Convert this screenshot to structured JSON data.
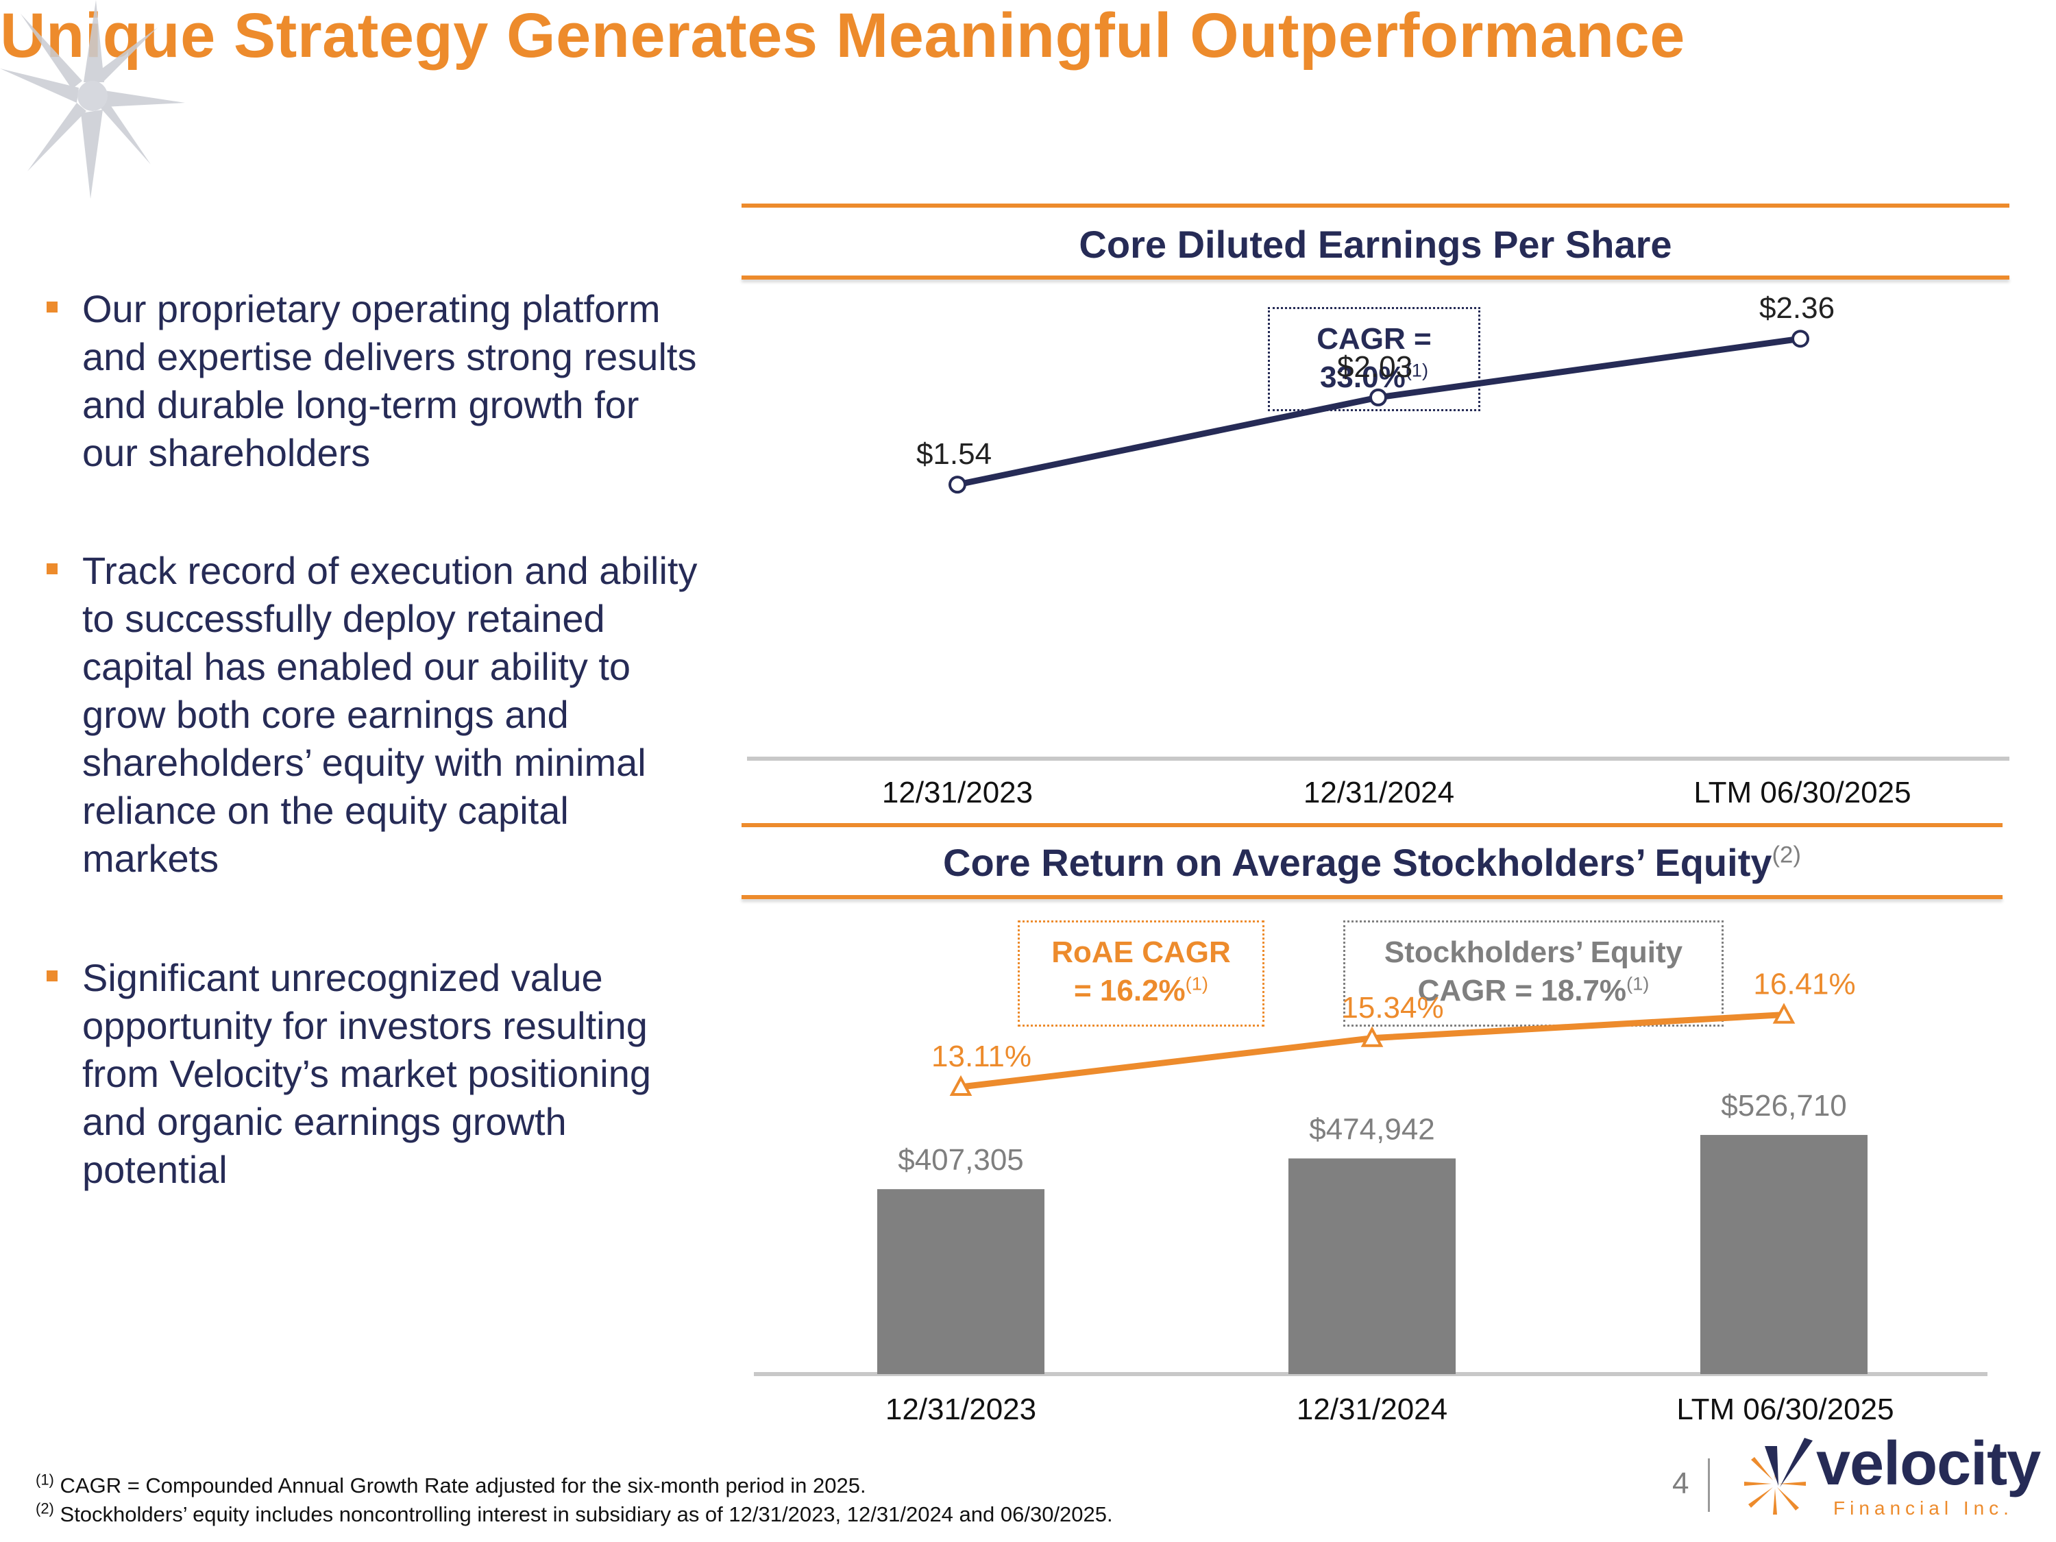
{
  "title": "Unique Strategy Generates Meaningful Outperformance",
  "bullets": [
    "Our proprietary operating platform and expertise delivers strong results and durable long-term growth for our shareholders",
    "Track record of execution and ability to successfully deploy retained capital has enabled our ability to grow both core earnings and shareholders’ equity with minimal reliance on the equity capital markets",
    "Significant unrecognized value opportunity for investors resulting from Velocity’s market positioning and organic earnings growth potential"
  ],
  "colors": {
    "accent": "#ED8B2C",
    "navy": "#262B56",
    "gray": "#808080",
    "gray_text": "#7F7F7F"
  },
  "chart_data": [
    {
      "type": "line",
      "title": "Core Diluted Earnings Per Share",
      "categories": [
        "12/31/2023",
        "12/31/2024",
        "LTM 06/30/2025"
      ],
      "values": [
        1.54,
        2.03,
        2.36
      ],
      "data_labels": [
        "$1.54",
        "$2.03",
        "$2.36"
      ],
      "ylim": [
        0,
        2.8
      ],
      "annotation": {
        "line1": "CAGR =",
        "line2": "33.0%",
        "footnote_ref": "(1)"
      }
    },
    {
      "type": "bar",
      "title": "Core Return on Average Stockholders’ Equity",
      "title_footnote_ref": "(2)",
      "categories": [
        "12/31/2023",
        "12/31/2024",
        "LTM 06/30/2025"
      ],
      "series": [
        {
          "name": "Stockholders’ Equity",
          "type": "bar",
          "values": [
            407305,
            474942,
            526710
          ],
          "data_labels": [
            "$407,305",
            "$474,942",
            "$526,710"
          ]
        },
        {
          "name": "Core RoAE",
          "type": "line",
          "values": [
            13.11,
            15.34,
            16.41
          ],
          "data_labels": [
            "13.11%",
            "15.34%",
            "16.41%"
          ]
        }
      ],
      "annotations": {
        "roae_cagr": {
          "line1": "RoAE CAGR",
          "line2": "= 16.2%",
          "footnote_ref": "(1)"
        },
        "equity_cagr": {
          "line1": "Stockholders’ Equity",
          "line2": "CAGR = 18.7%",
          "footnote_ref": "(1)"
        }
      }
    }
  ],
  "footnotes": [
    {
      "ref": "(1)",
      "text": "CAGR = Compounded Annual Growth Rate adjusted for the six-month period in 2025."
    },
    {
      "ref": "(2)",
      "text": "Stockholders’ equity includes noncontrolling interest in subsidiary as of 12/31/2023, 12/31/2024 and 06/30/2025."
    }
  ],
  "page_number": "4",
  "logo": {
    "name": "velocity",
    "tagline": "Financial Inc."
  }
}
